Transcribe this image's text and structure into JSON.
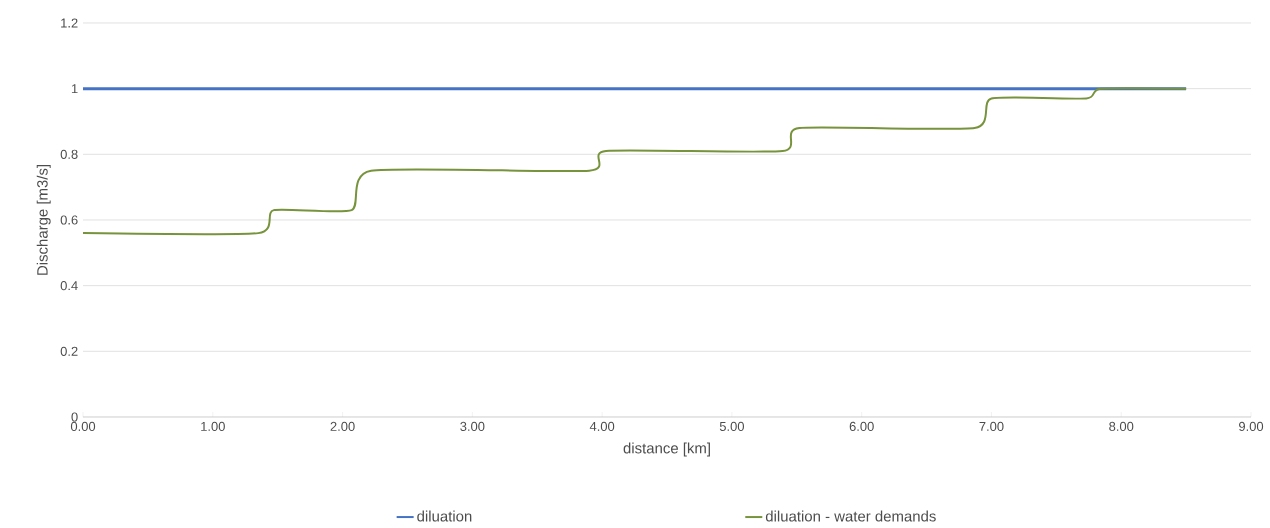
{
  "chart_data": {
    "type": "line",
    "xlabel": "distance [km]",
    "ylabel": "Discharge [m3/s]",
    "series": [
      {
        "name": "diluation",
        "color": "#4472c4",
        "x": [
          0,
          8.5
        ],
        "values": [
          1,
          1
        ]
      },
      {
        "name": "diluation - water demands",
        "color": "#77933c",
        "x": [
          0,
          1.35,
          1.47,
          2.07,
          2.22,
          3.9,
          4.03,
          5.39,
          5.52,
          6.87,
          7.0,
          7.73,
          7.84,
          8.5
        ],
        "values": [
          0.56,
          0.56,
          0.63,
          0.63,
          0.75,
          0.75,
          0.81,
          0.81,
          0.88,
          0.88,
          0.97,
          0.97,
          1.0,
          1.0
        ]
      }
    ],
    "xlim": [
      0,
      9
    ],
    "xticks": [
      {
        "value": 0,
        "label": "0.00"
      },
      {
        "value": 1,
        "label": "1.00"
      },
      {
        "value": 2,
        "label": "2.00"
      },
      {
        "value": 3,
        "label": "3.00"
      },
      {
        "value": 4,
        "label": "4.00"
      },
      {
        "value": 5,
        "label": "5.00"
      },
      {
        "value": 6,
        "label": "6.00"
      },
      {
        "value": 7,
        "label": "7.00"
      },
      {
        "value": 8,
        "label": "8.00"
      },
      {
        "value": 9,
        "label": "9.00"
      }
    ],
    "ylim": [
      0,
      1.2
    ],
    "yticks": [
      0,
      0.2,
      0.4,
      0.6,
      0.8,
      1,
      1.2
    ],
    "grid": "y",
    "legend": "bottom",
    "marker": "none",
    "line_style": "solid"
  }
}
